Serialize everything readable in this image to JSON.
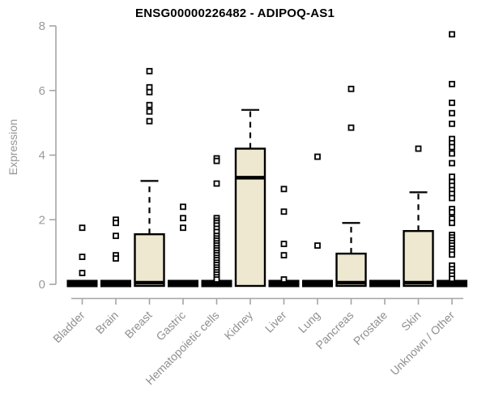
{
  "chart_data": {
    "type": "boxplot",
    "title": "ENSG00000226482 - ADIPOQ-AS1",
    "ylabel": "Expression",
    "xlabel": "",
    "ylim": [
      0,
      8
    ],
    "yticks": [
      0,
      2,
      4,
      6,
      8
    ],
    "grid": false,
    "legend": false,
    "colors": {
      "box_fill": "#ede8cf",
      "box_stroke": "#000000",
      "axis": "#a5a5a5",
      "tick_label": "#9a9a9a",
      "category_label": "#8f8f8f",
      "title": "#000000",
      "outlier_fill": "#ffffff"
    },
    "categories": [
      "Bladder",
      "Brain",
      "Breast",
      "Gastric",
      "Hematopoietic cells",
      "Kidney",
      "Liver",
      "Lung",
      "Pancreas",
      "Prostate",
      "Skin",
      "Unknown / Other"
    ],
    "boxes": [
      {
        "category": "Bladder",
        "flat": true,
        "q1": 0,
        "median": 0,
        "q3": 0,
        "whisker_low": 0,
        "whisker_high": 0,
        "outliers": [
          1.75,
          0.85,
          0.35
        ]
      },
      {
        "category": "Brain",
        "flat": true,
        "q1": 0,
        "median": 0,
        "q3": 0,
        "whisker_low": 0,
        "whisker_high": 0,
        "outliers": [
          2.0,
          1.9,
          1.5,
          0.9,
          0.8
        ]
      },
      {
        "category": "Breast",
        "flat": false,
        "q1": 0,
        "median": 0.05,
        "q3": 1.55,
        "whisker_low": 0,
        "whisker_high": 3.2,
        "outliers": [
          6.6,
          6.1,
          5.95,
          5.55,
          5.35,
          5.05
        ]
      },
      {
        "category": "Gastric",
        "flat": true,
        "q1": 0,
        "median": 0,
        "q3": 0,
        "whisker_low": 0,
        "whisker_high": 0,
        "outliers": [
          2.4,
          2.05,
          1.75
        ]
      },
      {
        "category": "Hematopoietic cells",
        "flat": true,
        "q1": 0,
        "median": 0,
        "q3": 0,
        "whisker_low": 0,
        "whisker_high": 0,
        "outliers": [
          3.9,
          3.82,
          3.12,
          2.05,
          1.97,
          1.9,
          1.82,
          1.72,
          1.62,
          1.5,
          1.42,
          1.35,
          1.27,
          1.2,
          1.12,
          1.05,
          0.97,
          0.9,
          0.82,
          0.75,
          0.67,
          0.6,
          0.52,
          0.45,
          0.37,
          0.3,
          0.22,
          0.15
        ]
      },
      {
        "category": "Kidney",
        "flat": false,
        "q1": 0,
        "median": 3.3,
        "q3": 4.2,
        "whisker_low": 0,
        "whisker_high": 5.4,
        "outliers": []
      },
      {
        "category": "Liver",
        "flat": true,
        "q1": 0,
        "median": 0,
        "q3": 0,
        "whisker_low": 0,
        "whisker_high": 0,
        "outliers": [
          2.95,
          2.25,
          1.25,
          0.9,
          0.15
        ]
      },
      {
        "category": "Lung",
        "flat": true,
        "q1": 0,
        "median": 0,
        "q3": 0,
        "whisker_low": 0,
        "whisker_high": 0,
        "outliers": [
          3.95,
          1.2
        ]
      },
      {
        "category": "Pancreas",
        "flat": false,
        "q1": 0,
        "median": 0.05,
        "q3": 0.95,
        "whisker_low": 0,
        "whisker_high": 1.9,
        "outliers": [
          6.05,
          4.85
        ]
      },
      {
        "category": "Prostate",
        "flat": true,
        "q1": 0,
        "median": 0,
        "q3": 0,
        "whisker_low": 0,
        "whisker_high": 0,
        "outliers": []
      },
      {
        "category": "Skin",
        "flat": false,
        "q1": 0,
        "median": 0.05,
        "q3": 1.65,
        "whisker_low": 0,
        "whisker_high": 2.85,
        "outliers": [
          4.2
        ]
      },
      {
        "category": "Unknown / Other",
        "flat": true,
        "q1": 0,
        "median": 0,
        "q3": 0,
        "whisker_low": 0,
        "whisker_high": 0,
        "outliers": [
          7.74,
          6.2,
          5.62,
          5.3,
          4.97,
          4.5,
          4.37,
          4.25,
          4.05,
          3.75,
          3.33,
          3.17,
          3.05,
          2.92,
          2.8,
          2.67,
          2.33,
          2.23,
          2.03,
          1.9,
          1.53,
          1.45,
          1.37,
          1.28,
          1.2,
          1.1,
          1.02,
          0.92,
          0.58,
          0.47,
          0.37,
          0.27,
          0.17
        ]
      }
    ]
  }
}
